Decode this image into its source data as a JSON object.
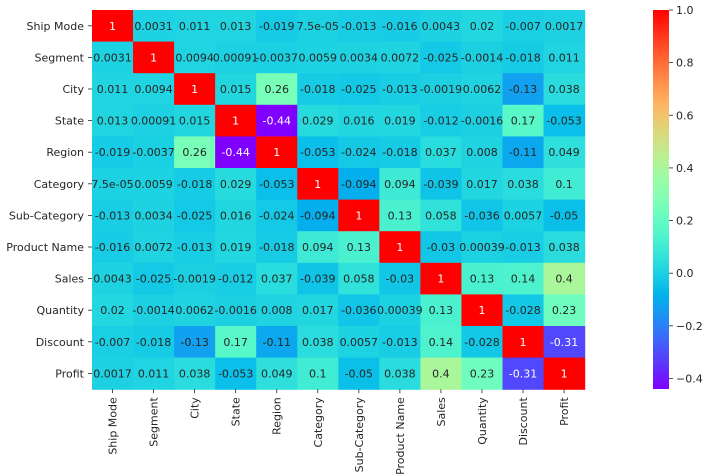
{
  "chart_data": {
    "type": "heatmap",
    "labels": [
      "Ship Mode",
      "Segment",
      "City",
      "State",
      "Region",
      "Category",
      "Sub-Category",
      "Product Name",
      "Sales",
      "Quantity",
      "Discount",
      "Profit"
    ],
    "values": [
      [
        1,
        0.0031,
        0.011,
        0.013,
        -0.019,
        7.5e-05,
        -0.013,
        -0.016,
        0.0043,
        0.02,
        -0.007,
        0.0017
      ],
      [
        0.0031,
        1,
        0.0094,
        0.00091,
        -0.0037,
        0.0059,
        0.0034,
        0.0072,
        -0.025,
        -0.0014,
        -0.018,
        0.011
      ],
      [
        0.011,
        0.0094,
        1,
        0.015,
        0.26,
        -0.018,
        -0.025,
        -0.013,
        -0.0019,
        0.0062,
        -0.13,
        0.038
      ],
      [
        0.013,
        0.00091,
        0.015,
        1,
        -0.44,
        0.029,
        0.016,
        0.019,
        -0.012,
        -0.0016,
        0.17,
        -0.053
      ],
      [
        -0.019,
        -0.0037,
        0.26,
        -0.44,
        1,
        -0.053,
        -0.024,
        -0.018,
        0.037,
        0.008,
        -0.11,
        0.049
      ],
      [
        7.5e-05,
        0.0059,
        -0.018,
        0.029,
        -0.053,
        1,
        -0.094,
        0.094,
        -0.039,
        0.017,
        0.038,
        0.1
      ],
      [
        -0.013,
        0.0034,
        -0.025,
        0.016,
        -0.024,
        -0.094,
        1,
        0.13,
        0.058,
        -0.036,
        0.0057,
        -0.05
      ],
      [
        -0.016,
        0.0072,
        -0.013,
        0.019,
        -0.018,
        0.094,
        0.13,
        1,
        -0.03,
        0.00039,
        -0.013,
        0.038
      ],
      [
        0.0043,
        -0.025,
        -0.0019,
        -0.012,
        0.037,
        -0.039,
        0.058,
        -0.03,
        1,
        0.13,
        0.14,
        0.4
      ],
      [
        0.02,
        -0.0014,
        0.0062,
        -0.0016,
        0.008,
        0.017,
        -0.036,
        0.00039,
        0.13,
        1,
        -0.028,
        0.23
      ],
      [
        -0.007,
        -0.018,
        -0.13,
        0.17,
        -0.11,
        0.038,
        0.0057,
        -0.013,
        0.14,
        -0.028,
        1,
        -0.31
      ],
      [
        0.0017,
        0.011,
        0.038,
        -0.053,
        0.049,
        0.1,
        -0.05,
        0.038,
        0.4,
        0.23,
        -0.31,
        1
      ]
    ],
    "annotations": [
      [
        "1",
        "0.0031",
        "0.011",
        "0.013",
        "-0.019",
        "7.5e-05",
        "-0.013",
        "-0.016",
        "0.0043",
        "0.02",
        "-0.007",
        "0.0017"
      ],
      [
        "0.0031",
        "1",
        "0.0094",
        "0.00091",
        "-0.0037",
        "0.0059",
        "0.0034",
        "0.0072",
        "-0.025",
        "-0.0014",
        "-0.018",
        "0.011"
      ],
      [
        "0.011",
        "0.0094",
        "1",
        "0.015",
        "0.26",
        "-0.018",
        "-0.025",
        "-0.013",
        "-0.0019",
        "0.0062",
        "-0.13",
        "0.038"
      ],
      [
        "0.013",
        "0.00091",
        "0.015",
        "1",
        "-0.44",
        "0.029",
        "0.016",
        "0.019",
        "-0.012",
        "-0.0016",
        "0.17",
        "-0.053"
      ],
      [
        "-0.019",
        "-0.0037",
        "0.26",
        "-0.44",
        "1",
        "-0.053",
        "-0.024",
        "-0.018",
        "0.037",
        "0.008",
        "-0.11",
        "0.049"
      ],
      [
        "7.5e-05",
        "0.0059",
        "-0.018",
        "0.029",
        "-0.053",
        "1",
        "-0.094",
        "0.094",
        "-0.039",
        "0.017",
        "0.038",
        "0.1"
      ],
      [
        "-0.013",
        "0.0034",
        "-0.025",
        "0.016",
        "-0.024",
        "-0.094",
        "1",
        "0.13",
        "0.058",
        "-0.036",
        "0.0057",
        "-0.05"
      ],
      [
        "-0.016",
        "0.0072",
        "-0.013",
        "0.019",
        "-0.018",
        "0.094",
        "0.13",
        "1",
        "-0.03",
        "0.00039",
        "-0.013",
        "0.038"
      ],
      [
        "0.0043",
        "-0.025",
        "-0.0019",
        "-0.012",
        "0.037",
        "-0.039",
        "0.058",
        "-0.03",
        "1",
        "0.13",
        "0.14",
        "0.4"
      ],
      [
        "0.02",
        "-0.0014",
        "0.0062",
        "-0.0016",
        "0.008",
        "0.017",
        "-0.036",
        "0.00039",
        "0.13",
        "1",
        "-0.028",
        "0.23"
      ],
      [
        "-0.007",
        "-0.018",
        "-0.13",
        "0.17",
        "-0.11",
        "0.038",
        "0.0057",
        "-0.013",
        "0.14",
        "-0.028",
        "1",
        "-0.31"
      ],
      [
        "0.0017",
        "0.011",
        "0.038",
        "-0.053",
        "0.049",
        "0.1",
        "-0.05",
        "0.038",
        "0.4",
        "0.23",
        "-0.31",
        "1"
      ]
    ],
    "colormap": "rainbow",
    "vmin": -0.44,
    "vmax": 1,
    "colorbar": {
      "ticks": [
        -0.4,
        -0.2,
        0.0,
        0.2,
        0.4,
        0.6,
        0.8,
        1.0
      ],
      "tick_labels": [
        "−0.4",
        "−0.2",
        "0.0",
        "0.2",
        "0.4",
        "0.6",
        "0.8",
        "1.0"
      ]
    },
    "title": "",
    "xlabel": "",
    "ylabel": ""
  }
}
